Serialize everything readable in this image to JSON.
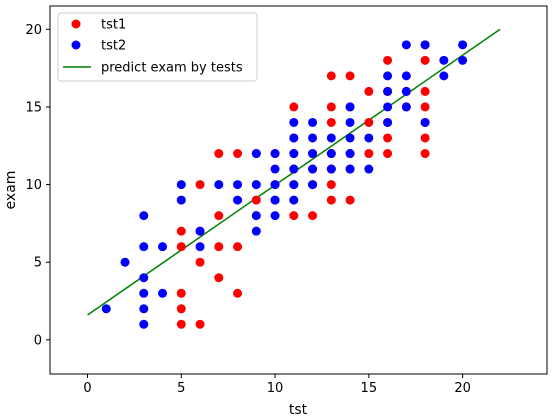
{
  "chart_data": {
    "type": "scatter",
    "title": "",
    "xlabel": "tst",
    "ylabel": "exam",
    "xlim": [
      -2,
      24.5
    ],
    "ylim": [
      -2.2,
      21.5
    ],
    "xticks": [
      0,
      5,
      10,
      15,
      20
    ],
    "yticks": [
      0,
      5,
      10,
      15,
      20
    ],
    "grid": false,
    "legend_position": "top-left",
    "series": [
      {
        "name": "tst1",
        "kind": "scatter",
        "color": "#ff0000",
        "points": [
          [
            5,
            1
          ],
          [
            5,
            2
          ],
          [
            5,
            3
          ],
          [
            5,
            6
          ],
          [
            5,
            7
          ],
          [
            6,
            1
          ],
          [
            6,
            5
          ],
          [
            6,
            7
          ],
          [
            6,
            10
          ],
          [
            7,
            4
          ],
          [
            7,
            6
          ],
          [
            7,
            8
          ],
          [
            7,
            12
          ],
          [
            8,
            3
          ],
          [
            8,
            6
          ],
          [
            8,
            12
          ],
          [
            9,
            9
          ],
          [
            9,
            12
          ],
          [
            10,
            9
          ],
          [
            10,
            10
          ],
          [
            10,
            12
          ],
          [
            11,
            8
          ],
          [
            11,
            10
          ],
          [
            11,
            11
          ],
          [
            11,
            12
          ],
          [
            11,
            13
          ],
          [
            11,
            15
          ],
          [
            12,
            8
          ],
          [
            12,
            10
          ],
          [
            12,
            11
          ],
          [
            12,
            12
          ],
          [
            13,
            9
          ],
          [
            13,
            10
          ],
          [
            13,
            11
          ],
          [
            13,
            12
          ],
          [
            13,
            14
          ],
          [
            13,
            15
          ],
          [
            13,
            17
          ],
          [
            14,
            9
          ],
          [
            14,
            11
          ],
          [
            14,
            12
          ],
          [
            14,
            15
          ],
          [
            14,
            17
          ],
          [
            15,
            12
          ],
          [
            15,
            14
          ],
          [
            15,
            16
          ],
          [
            16,
            12
          ],
          [
            16,
            13
          ],
          [
            16,
            14
          ],
          [
            16,
            16
          ],
          [
            16,
            18
          ],
          [
            17,
            15
          ],
          [
            17,
            16
          ],
          [
            18,
            12
          ],
          [
            18,
            13
          ],
          [
            18,
            14
          ],
          [
            18,
            15
          ],
          [
            18,
            16
          ],
          [
            18,
            18
          ],
          [
            18,
            19
          ]
        ]
      },
      {
        "name": "tst2",
        "kind": "scatter",
        "color": "#0000ff",
        "points": [
          [
            1,
            2
          ],
          [
            2,
            5
          ],
          [
            3,
            1
          ],
          [
            3,
            2
          ],
          [
            3,
            3
          ],
          [
            3,
            4
          ],
          [
            3,
            6
          ],
          [
            3,
            8
          ],
          [
            4,
            3
          ],
          [
            4,
            6
          ],
          [
            5,
            9
          ],
          [
            5,
            10
          ],
          [
            6,
            6
          ],
          [
            6,
            7
          ],
          [
            7,
            10
          ],
          [
            8,
            9
          ],
          [
            8,
            10
          ],
          [
            9,
            7
          ],
          [
            9,
            8
          ],
          [
            9,
            10
          ],
          [
            9,
            12
          ],
          [
            10,
            8
          ],
          [
            10,
            9
          ],
          [
            10,
            10
          ],
          [
            10,
            11
          ],
          [
            10,
            12
          ],
          [
            11,
            9
          ],
          [
            11,
            10
          ],
          [
            11,
            11
          ],
          [
            11,
            12
          ],
          [
            11,
            13
          ],
          [
            11,
            14
          ],
          [
            12,
            10
          ],
          [
            12,
            11
          ],
          [
            12,
            12
          ],
          [
            12,
            13
          ],
          [
            12,
            14
          ],
          [
            13,
            11
          ],
          [
            13,
            12
          ],
          [
            13,
            13
          ],
          [
            14,
            11
          ],
          [
            14,
            12
          ],
          [
            14,
            13
          ],
          [
            14,
            14
          ],
          [
            14,
            15
          ],
          [
            15,
            11
          ],
          [
            15,
            13
          ],
          [
            16,
            14
          ],
          [
            16,
            15
          ],
          [
            16,
            16
          ],
          [
            16,
            17
          ],
          [
            17,
            15
          ],
          [
            17,
            16
          ],
          [
            17,
            17
          ],
          [
            17,
            19
          ],
          [
            18,
            14
          ],
          [
            18,
            19
          ],
          [
            19,
            17
          ],
          [
            19,
            18
          ],
          [
            20,
            18
          ],
          [
            20,
            19
          ]
        ]
      },
      {
        "name": "predict exam by tests",
        "kind": "line",
        "color": "#008000",
        "points": [
          [
            0,
            1.6
          ],
          [
            22,
            20
          ]
        ]
      }
    ]
  }
}
